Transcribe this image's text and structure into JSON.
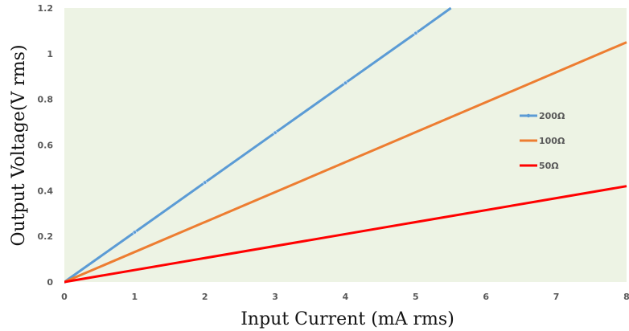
{
  "chart_data": {
    "type": "line",
    "title": "",
    "xlabel": "Input Current (mA rms)",
    "ylabel": "Output Voltage(V rms)",
    "xlim": [
      0,
      8
    ],
    "ylim": [
      0,
      1.2
    ],
    "x_ticks": [
      "0",
      "1",
      "2",
      "3",
      "4",
      "5",
      "6",
      "7",
      "8"
    ],
    "y_ticks": [
      "0",
      "0.2",
      "0.4",
      "0.6",
      "0.8",
      "1",
      "1.2"
    ],
    "grid": false,
    "plot_background": "#edf3e4",
    "legend_position": "right",
    "series": [
      {
        "name": "200Ω",
        "color": "#5b9bd5",
        "markers": true,
        "x": [
          0,
          1,
          2,
          3,
          4,
          5,
          5.5
        ],
        "values": [
          0,
          0.218,
          0.436,
          0.654,
          0.872,
          1.09,
          1.2
        ]
      },
      {
        "name": "100Ω",
        "color": "#ed7d31",
        "markers": false,
        "x": [
          0,
          8
        ],
        "values": [
          0,
          1.05
        ]
      },
      {
        "name": "50Ω",
        "color": "#ff0000",
        "markers": false,
        "x": [
          0,
          8
        ],
        "values": [
          0,
          0.42
        ]
      }
    ]
  }
}
